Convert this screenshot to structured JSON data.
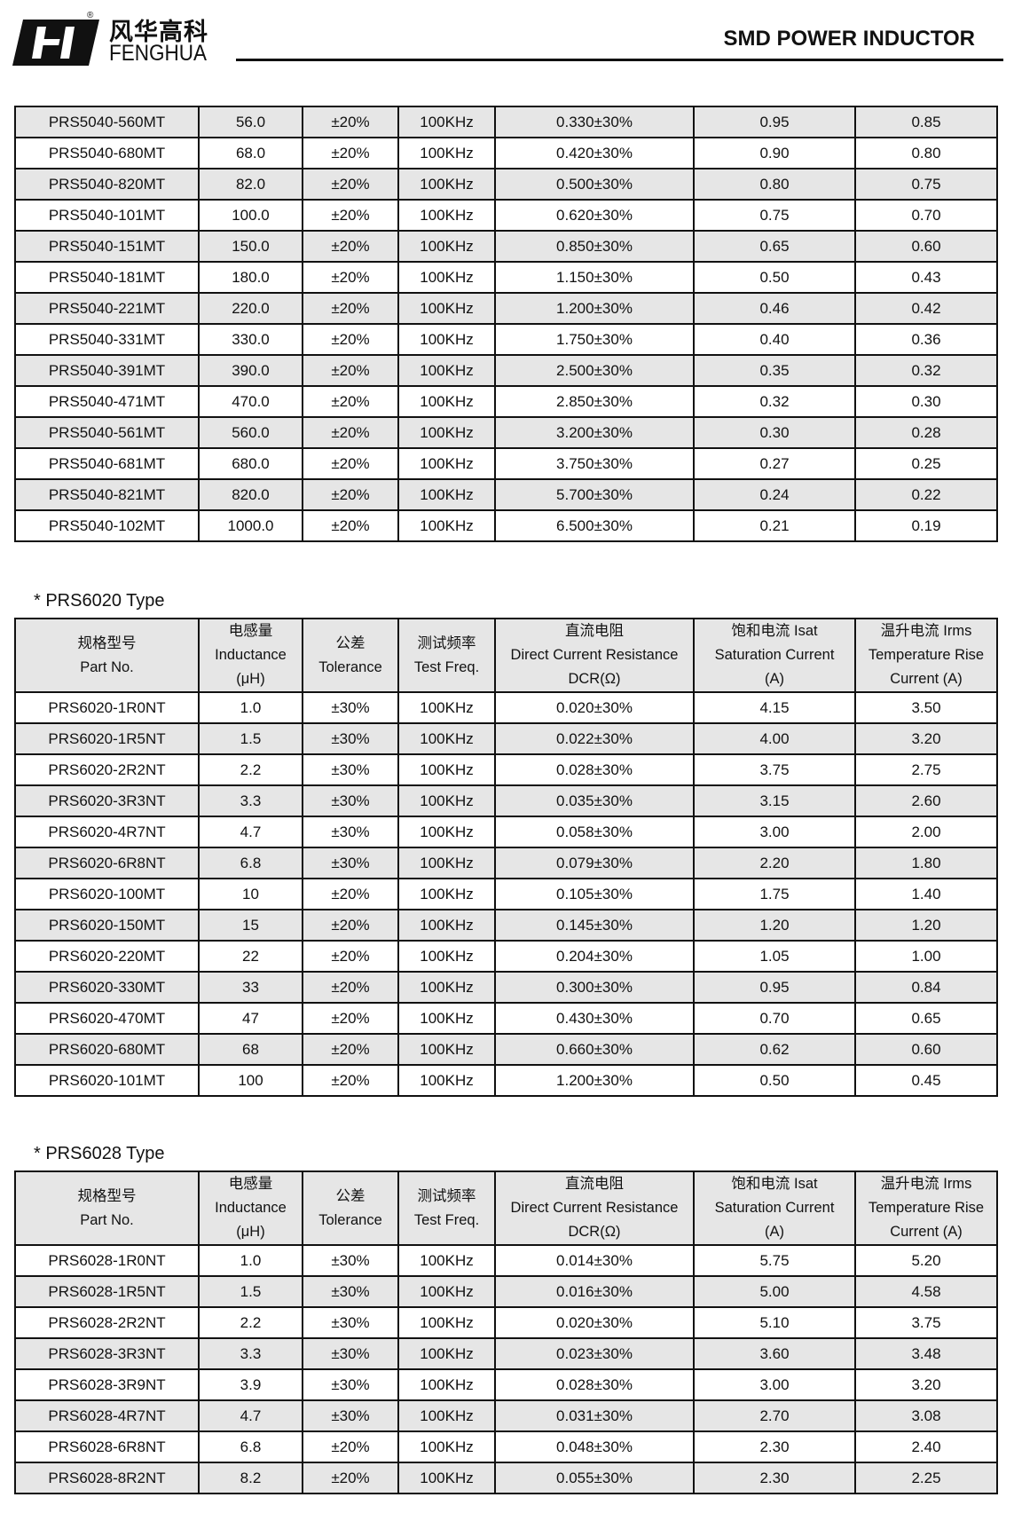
{
  "header": {
    "logo_cn": "风华高科",
    "logo_en": "FENGHUA",
    "registered": "®",
    "title": "SMD POWER INDUCTOR"
  },
  "colors": {
    "row_shade": "#e6e6e6",
    "border": "#111111"
  },
  "columns": [
    [
      "规格型号",
      "Part No."
    ],
    [
      "电感量",
      "Inductance",
      "(μH)"
    ],
    [
      "公差",
      "Tolerance"
    ],
    [
      "测试频率",
      "Test Freq."
    ],
    [
      "直流电阻",
      "Direct Current Resistance",
      "DCR(Ω)"
    ],
    [
      "饱和电流  Isat",
      "Saturation Current",
      "(A)"
    ],
    [
      "温升电流  Irms",
      "Temperature Rise",
      "Current (A)"
    ]
  ],
  "tables": [
    {
      "title": "",
      "rows": [
        [
          "PRS5040-560MT",
          "56.0",
          "±20%",
          "100KHz",
          "0.330±30%",
          "0.95",
          "0.85"
        ],
        [
          "PRS5040-680MT",
          "68.0",
          "±20%",
          "100KHz",
          "0.420±30%",
          "0.90",
          "0.80"
        ],
        [
          "PRS5040-820MT",
          "82.0",
          "±20%",
          "100KHz",
          "0.500±30%",
          "0.80",
          "0.75"
        ],
        [
          "PRS5040-101MT",
          "100.0",
          "±20%",
          "100KHz",
          "0.620±30%",
          "0.75",
          "0.70"
        ],
        [
          "PRS5040-151MT",
          "150.0",
          "±20%",
          "100KHz",
          "0.850±30%",
          "0.65",
          "0.60"
        ],
        [
          "PRS5040-181MT",
          "180.0",
          "±20%",
          "100KHz",
          "1.150±30%",
          "0.50",
          "0.43"
        ],
        [
          "PRS5040-221MT",
          "220.0",
          "±20%",
          "100KHz",
          "1.200±30%",
          "0.46",
          "0.42"
        ],
        [
          "PRS5040-331MT",
          "330.0",
          "±20%",
          "100KHz",
          "1.750±30%",
          "0.40",
          "0.36"
        ],
        [
          "PRS5040-391MT",
          "390.0",
          "±20%",
          "100KHz",
          "2.500±30%",
          "0.35",
          "0.32"
        ],
        [
          "PRS5040-471MT",
          "470.0",
          "±20%",
          "100KHz",
          "2.850±30%",
          "0.32",
          "0.30"
        ],
        [
          "PRS5040-561MT",
          "560.0",
          "±20%",
          "100KHz",
          "3.200±30%",
          "0.30",
          "0.28"
        ],
        [
          "PRS5040-681MT",
          "680.0",
          "±20%",
          "100KHz",
          "3.750±30%",
          "0.27",
          "0.25"
        ],
        [
          "PRS5040-821MT",
          "820.0",
          "±20%",
          "100KHz",
          "5.700±30%",
          "0.24",
          "0.22"
        ],
        [
          "PRS5040-102MT",
          "1000.0",
          "±20%",
          "100KHz",
          "6.500±30%",
          "0.21",
          "0.19"
        ]
      ]
    },
    {
      "title": "* PRS6020 Type",
      "rows": [
        [
          "PRS6020-1R0NT",
          "1.0",
          "±30%",
          "100KHz",
          "0.020±30%",
          "4.15",
          "3.50"
        ],
        [
          "PRS6020-1R5NT",
          "1.5",
          "±30%",
          "100KHz",
          "0.022±30%",
          "4.00",
          "3.20"
        ],
        [
          "PRS6020-2R2NT",
          "2.2",
          "±30%",
          "100KHz",
          "0.028±30%",
          "3.75",
          "2.75"
        ],
        [
          "PRS6020-3R3NT",
          "3.3",
          "±30%",
          "100KHz",
          "0.035±30%",
          "3.15",
          "2.60"
        ],
        [
          "PRS6020-4R7NT",
          "4.7",
          "±30%",
          "100KHz",
          "0.058±30%",
          "3.00",
          "2.00"
        ],
        [
          "PRS6020-6R8NT",
          "6.8",
          "±30%",
          "100KHz",
          "0.079±30%",
          "2.20",
          "1.80"
        ],
        [
          "PRS6020-100MT",
          "10",
          "±20%",
          "100KHz",
          "0.105±30%",
          "1.75",
          "1.40"
        ],
        [
          "PRS6020-150MT",
          "15",
          "±20%",
          "100KHz",
          "0.145±30%",
          "1.20",
          "1.20"
        ],
        [
          "PRS6020-220MT",
          "22",
          "±20%",
          "100KHz",
          "0.204±30%",
          "1.05",
          "1.00"
        ],
        [
          "PRS6020-330MT",
          "33",
          "±20%",
          "100KHz",
          "0.300±30%",
          "0.95",
          "0.84"
        ],
        [
          "PRS6020-470MT",
          "47",
          "±20%",
          "100KHz",
          "0.430±30%",
          "0.70",
          "0.65"
        ],
        [
          "PRS6020-680MT",
          "68",
          "±20%",
          "100KHz",
          "0.660±30%",
          "0.62",
          "0.60"
        ],
        [
          "PRS6020-101MT",
          "100",
          "±20%",
          "100KHz",
          "1.200±30%",
          "0.50",
          "0.45"
        ]
      ]
    },
    {
      "title": "* PRS6028 Type",
      "rows": [
        [
          "PRS6028-1R0NT",
          "1.0",
          "±30%",
          "100KHz",
          "0.014±30%",
          "5.75",
          "5.20"
        ],
        [
          "PRS6028-1R5NT",
          "1.5",
          "±30%",
          "100KHz",
          "0.016±30%",
          "5.00",
          "4.58"
        ],
        [
          "PRS6028-2R2NT",
          "2.2",
          "±30%",
          "100KHz",
          "0.020±30%",
          "5.10",
          "3.75"
        ],
        [
          "PRS6028-3R3NT",
          "3.3",
          "±30%",
          "100KHz",
          "0.023±30%",
          "3.60",
          "3.48"
        ],
        [
          "PRS6028-3R9NT",
          "3.9",
          "±30%",
          "100KHz",
          "0.028±30%",
          "3.00",
          "3.20"
        ],
        [
          "PRS6028-4R7NT",
          "4.7",
          "±30%",
          "100KHz",
          "0.031±30%",
          "2.70",
          "3.08"
        ],
        [
          "PRS6028-6R8NT",
          "6.8",
          "±20%",
          "100KHz",
          "0.048±30%",
          "2.30",
          "2.40"
        ],
        [
          "PRS6028-8R2NT",
          "8.2",
          "±20%",
          "100KHz",
          "0.055±30%",
          "2.30",
          "2.25"
        ]
      ]
    }
  ]
}
